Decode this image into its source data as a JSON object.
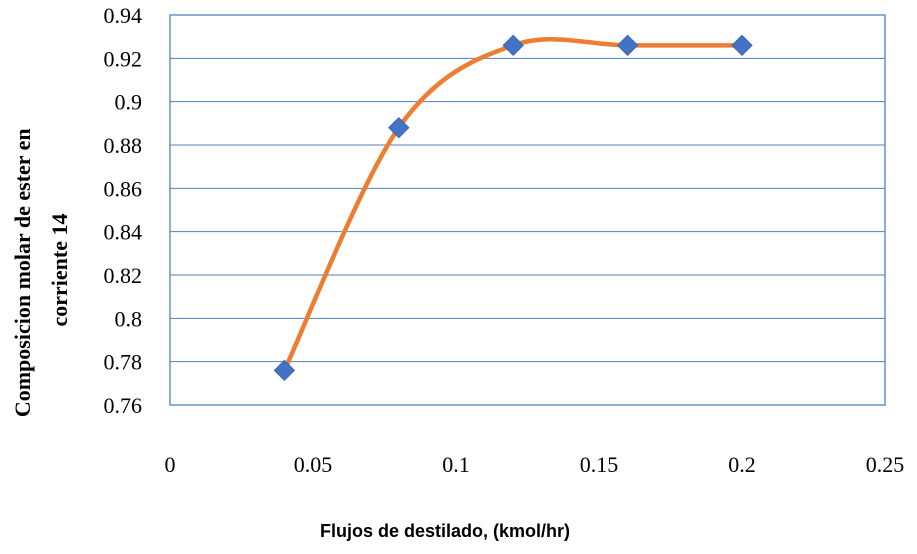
{
  "chart_data": {
    "type": "line",
    "title": "",
    "xlabel": "Flujos de destilado, (kmol/hr)",
    "ylabel_lines": [
      "Composicion molar de ester en",
      "corriente 14"
    ],
    "xlim": [
      0,
      0.25
    ],
    "ylim": [
      0.76,
      0.94
    ],
    "x_ticks": [
      "0",
      "0.05",
      "0.1",
      "0.15",
      "0.2",
      "0.25"
    ],
    "y_ticks": [
      "0.76",
      "0.78",
      "0.8",
      "0.82",
      "0.84",
      "0.86",
      "0.88",
      "0.9",
      "0.92",
      "0.94"
    ],
    "grid": "horizontal",
    "legend": "none",
    "series": [
      {
        "x": [
          0.04,
          0.08,
          0.12,
          0.16,
          0.2
        ],
        "y": [
          0.776,
          0.888,
          0.926,
          0.926,
          0.926
        ],
        "line_color": "#ED7D31",
        "marker": "diamond",
        "marker_color": "#4472C4",
        "smooth": true
      }
    ],
    "colors": {
      "plot_border": "#4F81BD",
      "gridline": "#4F81BD"
    }
  }
}
